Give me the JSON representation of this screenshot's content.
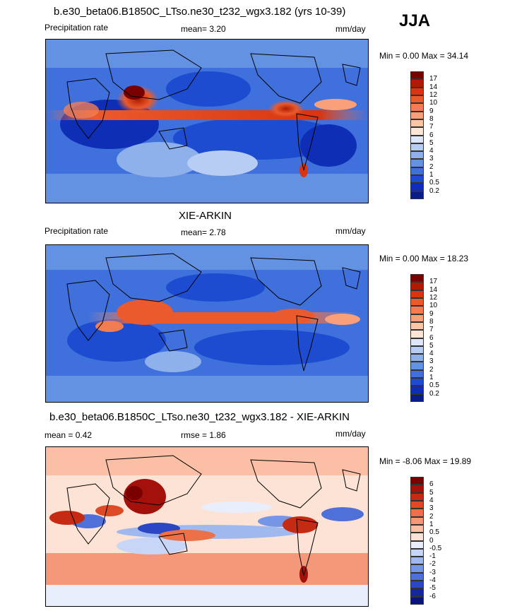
{
  "season": "JJA",
  "panels": [
    {
      "title": "b.e30_beta06.B1850C_LTso.ne30_t232_wgx3.182 (yrs 10-39)",
      "left_label": "Precipitation rate",
      "mid_label": "mean=   3.20",
      "units": "mm/day",
      "minmax": "Min =   0.00 Max =  34.14"
    },
    {
      "title": "XIE-ARKIN",
      "left_label": "Precipitation rate",
      "mid_label": "mean=   2.78",
      "units": "mm/day",
      "minmax": "Min =   0.00 Max =  18.23"
    },
    {
      "title": "b.e30_beta06.B1850C_LTso.ne30_t232_wgx3.182 - XIE-ARKIN",
      "left_label": "mean =   0.42",
      "mid_label": "rmse =   1.86",
      "units": "mm/day",
      "minmax": "Min =  -8.06 Max =  19.89"
    }
  ],
  "chart_data": [
    {
      "type": "heatmap",
      "title": "b.e30_beta06.B1850C_LTso.ne30_t232_wgx3.182 (yrs 10-39)",
      "variable": "Precipitation rate",
      "units": "mm/day",
      "mean": 3.2,
      "min": 0.0,
      "max": 34.14,
      "colorbar_levels": [
        "17",
        "14",
        "12",
        "10",
        "9",
        "8",
        "7",
        "6",
        "5",
        "4",
        "3",
        "2",
        "1",
        "0.5",
        "0.2"
      ],
      "colorbar_colors": [
        "#7a0000",
        "#b01a00",
        "#d83510",
        "#ea5a2c",
        "#f27d52",
        "#f7a07a",
        "#fbc6a6",
        "#fde6d6",
        "#dde7f9",
        "#b7cdf3",
        "#8eb1ec",
        "#6492e3",
        "#3f70dc",
        "#1d4cd0",
        "#0e2fb5",
        "#0a1c8a"
      ]
    },
    {
      "type": "heatmap",
      "title": "XIE-ARKIN",
      "variable": "Precipitation rate",
      "units": "mm/day",
      "mean": 2.78,
      "min": 0.0,
      "max": 18.23,
      "colorbar_levels": [
        "17",
        "14",
        "12",
        "10",
        "9",
        "8",
        "7",
        "6",
        "5",
        "4",
        "3",
        "2",
        "1",
        "0.5",
        "0.2"
      ],
      "colorbar_colors": [
        "#7a0000",
        "#b01a00",
        "#d83510",
        "#ea5a2c",
        "#f27d52",
        "#f7a07a",
        "#fbc6a6",
        "#fde6d6",
        "#dde7f9",
        "#b7cdf3",
        "#8eb1ec",
        "#6492e3",
        "#3f70dc",
        "#1d4cd0",
        "#0e2fb5",
        "#0a1c8a"
      ]
    },
    {
      "type": "heatmap",
      "title": "b.e30_beta06.B1850C_LTso.ne30_t232_wgx3.182 - XIE-ARKIN",
      "units": "mm/day",
      "mean": 0.42,
      "rmse": 1.86,
      "min": -8.06,
      "max": 19.89,
      "colorbar_levels": [
        "6",
        "5",
        "4",
        "3",
        "2",
        "1",
        "0.5",
        "0",
        "-0.5",
        "-1",
        "-2",
        "-3",
        "-4",
        "-5",
        "-6"
      ],
      "colorbar_colors": [
        "#7a0000",
        "#a3110a",
        "#c52a12",
        "#dc4a26",
        "#ec7048",
        "#f5987a",
        "#fbbfa6",
        "#fde3d5",
        "#e8eefc",
        "#c7d6f6",
        "#9fb9ef",
        "#7596e4",
        "#4f70d8",
        "#2c47c4",
        "#1626a3",
        "#0a1478"
      ]
    }
  ]
}
